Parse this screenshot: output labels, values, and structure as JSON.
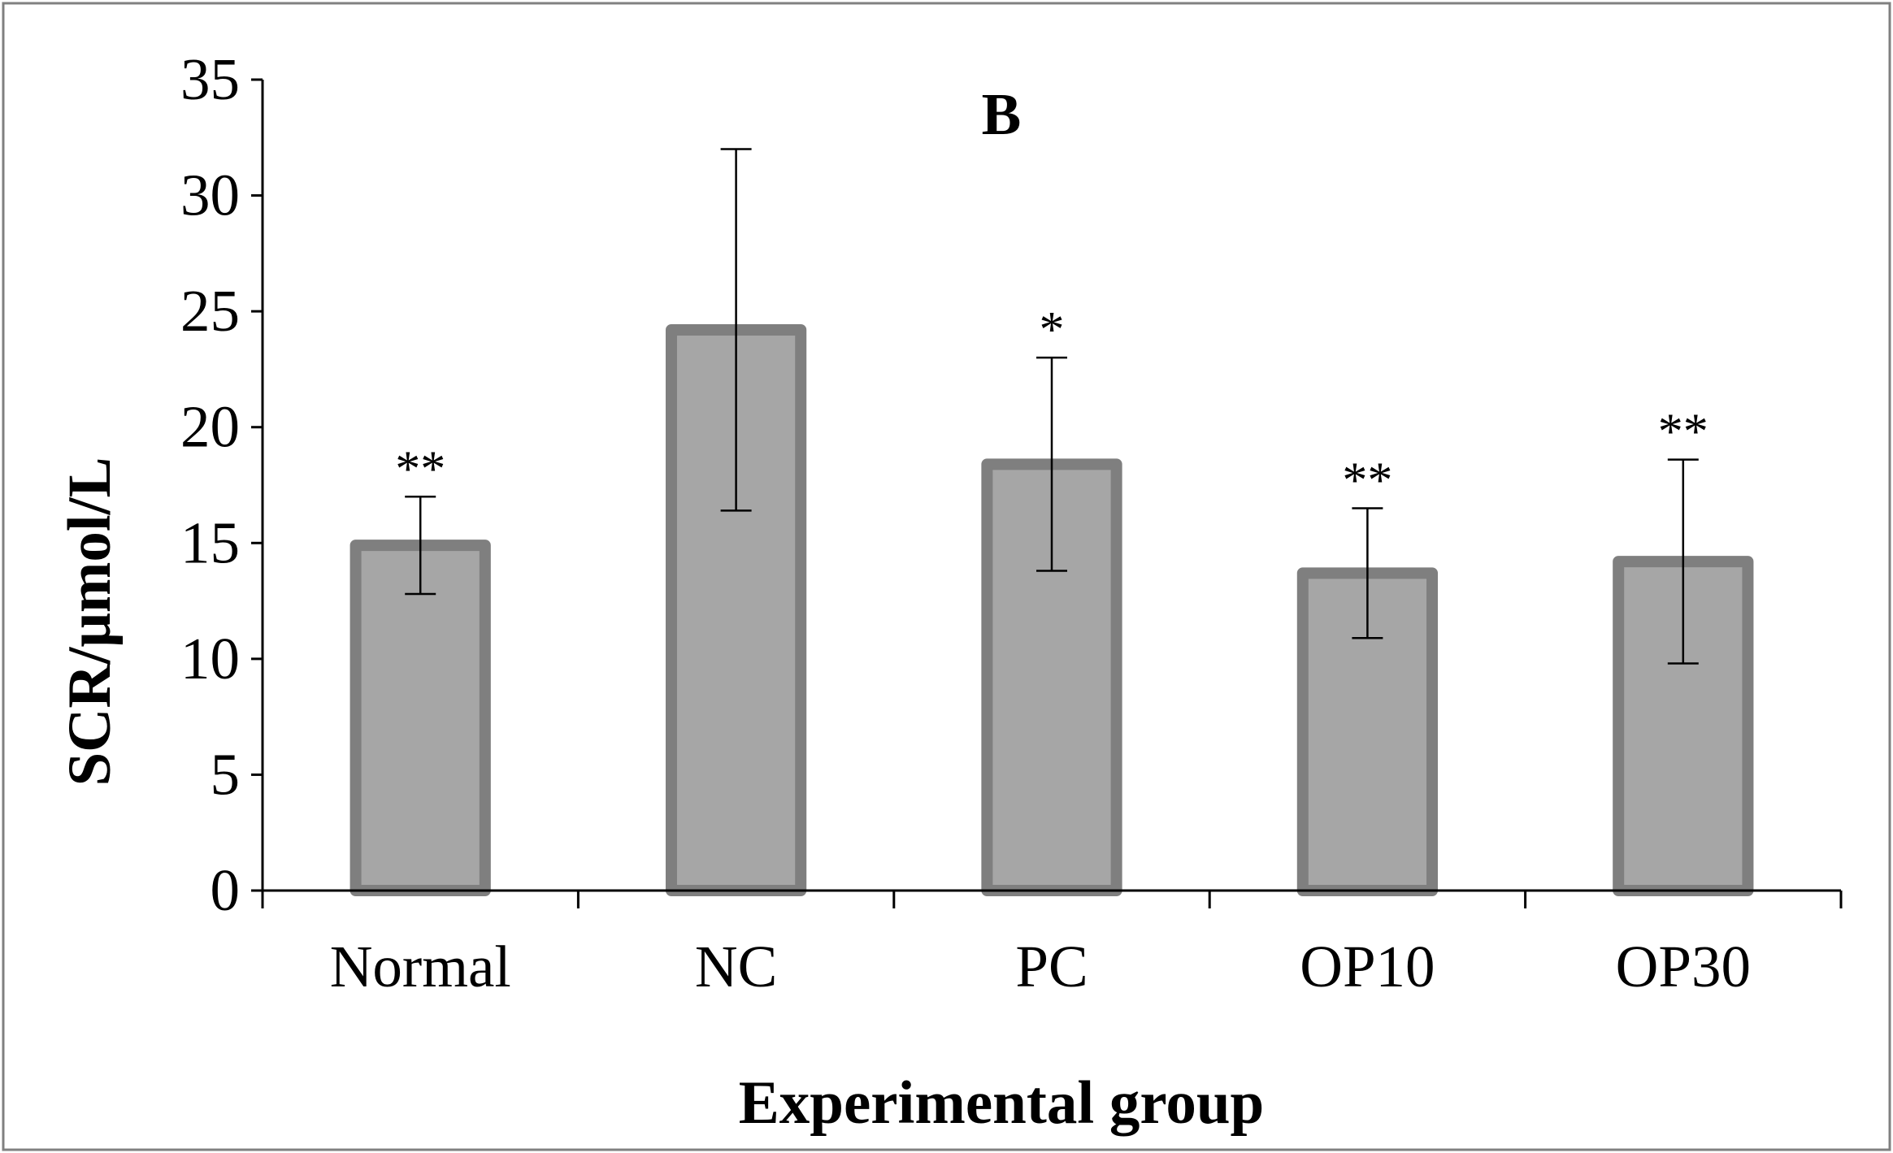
{
  "colors": {
    "bar_fill": "#a6a6a6",
    "bar_stroke": "#7f7f7f",
    "axis": "#000000",
    "frame": "#808080",
    "background": "#ffffff"
  },
  "chart_data": {
    "type": "bar",
    "title": "B",
    "xlabel": "Experimental group",
    "ylabel": "SCR/μmol/L",
    "ylim": [
      0,
      35
    ],
    "yticks": [
      0,
      5,
      10,
      15,
      20,
      25,
      30,
      35
    ],
    "categories": [
      "Normal",
      "NC",
      "PC",
      "OP10",
      "OP30"
    ],
    "values": [
      14.9,
      24.2,
      18.4,
      13.7,
      14.2
    ],
    "error": [
      2.1,
      7.8,
      4.6,
      2.8,
      4.4
    ],
    "significance": [
      "**",
      "",
      "*",
      "**",
      "**"
    ],
    "grid": false,
    "legend": "none"
  }
}
